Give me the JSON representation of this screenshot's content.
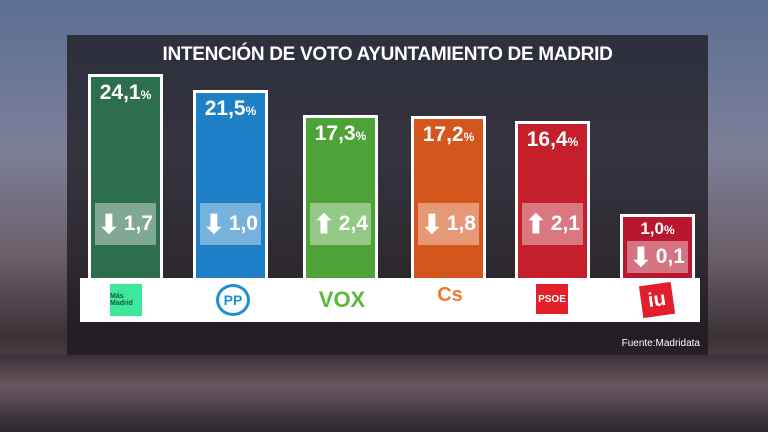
{
  "title": "INTENCIÓN DE VOTO AYUNTAMIENTO DE MADRID",
  "source": "Fuente:Madridata",
  "percent_sign": "%",
  "chart_data": {
    "type": "bar",
    "title": "INTENCIÓN DE VOTO AYUNTAMIENTO DE MADRID",
    "categories": [
      "Más Madrid",
      "PP",
      "VOX",
      "Cs",
      "PSOE",
      "IU"
    ],
    "values": [
      24.1,
      21.5,
      17.3,
      17.2,
      16.4,
      1.0
    ],
    "value_labels": [
      "24,1",
      "21,5",
      "17,3",
      "17,2",
      "16,4",
      "1,0"
    ],
    "changes": [
      -1.7,
      -1.0,
      2.4,
      -1.8,
      2.1,
      -0.1
    ],
    "change_labels": [
      "1,7",
      "1,0",
      "2,4",
      "1,8",
      "2,1",
      "0,1"
    ],
    "colors": [
      "#2d6e4e",
      "#1d7fc6",
      "#4da337",
      "#d4561c",
      "#c41f2a",
      "#b8172d"
    ]
  },
  "logos": [
    "Más Madrid",
    "PP",
    "VOX",
    "Cs",
    "PSOE",
    "iu"
  ]
}
